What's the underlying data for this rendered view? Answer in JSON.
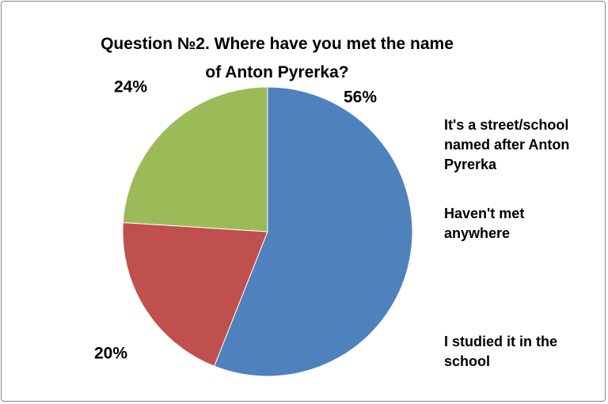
{
  "chart_data": {
    "type": "pie",
    "title": "Question №2. Where have you met the name of Anton Pyrerka?",
    "categories": [
      "It's a street/school named after Anton Pyrerka",
      "Haven't met anywhere",
      "I studied it in the school"
    ],
    "values": [
      56,
      20,
      24
    ],
    "value_labels": [
      "56%",
      "20%",
      "24%"
    ],
    "colors": [
      "#4f81bd",
      "#c0504d",
      "#9bbb59"
    ]
  }
}
